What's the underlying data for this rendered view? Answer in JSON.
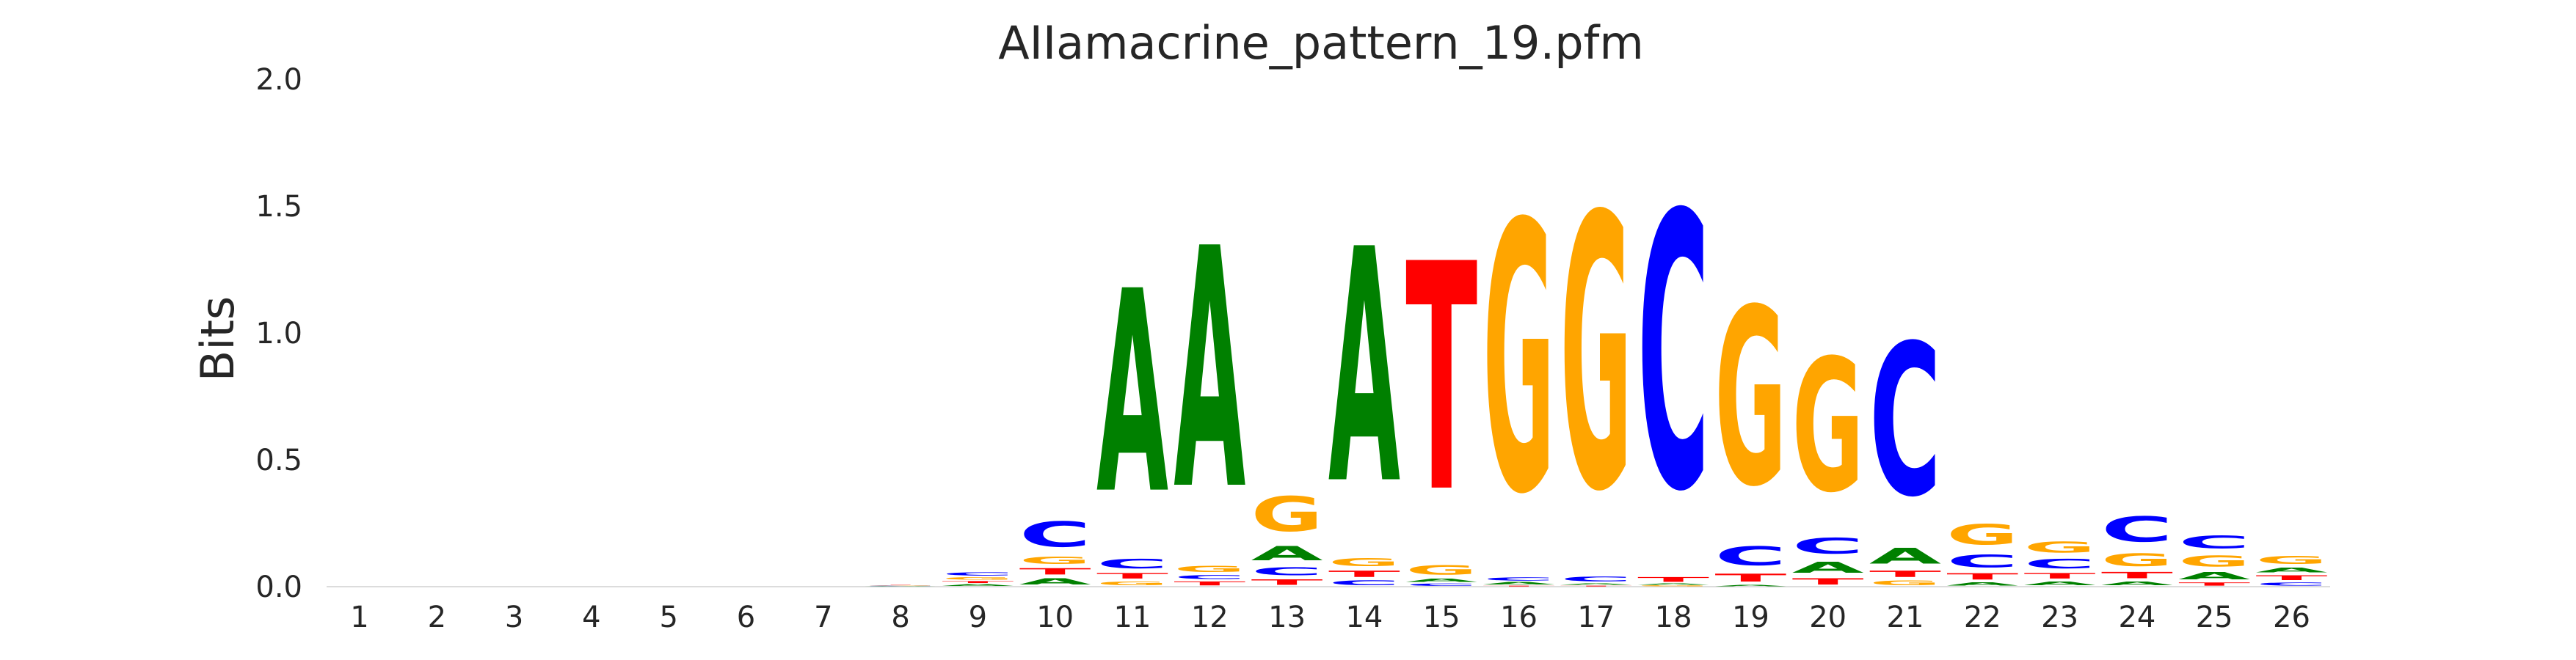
{
  "chart_data": {
    "type": "sequence_logo",
    "title": "AIIamacrine_pattern_19.pfm",
    "xlabel": "",
    "ylabel": "Bits",
    "ylim": [
      0,
      2.0
    ],
    "yticks": [
      "0.0",
      "0.5",
      "1.0",
      "1.5",
      "2.0"
    ],
    "positions": [
      "1",
      "2",
      "3",
      "4",
      "5",
      "6",
      "7",
      "8",
      "9",
      "10",
      "11",
      "12",
      "13",
      "14",
      "15",
      "16",
      "17",
      "18",
      "19",
      "20",
      "21",
      "22",
      "23",
      "24",
      "25",
      "26"
    ],
    "colors": {
      "A": "#008000",
      "C": "#0000ff",
      "G": "#ffa500",
      "T": "#ff0000"
    },
    "columns": [
      [],
      [],
      [],
      [],
      [],
      [],
      [],
      [
        [
          "A",
          0.002
        ],
        [
          "C",
          0.002
        ],
        [
          "G",
          0.002
        ],
        [
          "T",
          0.002
        ]
      ],
      [
        [
          "A",
          0.012
        ],
        [
          "T",
          0.012
        ],
        [
          "G",
          0.016
        ],
        [
          "C",
          0.02
        ]
      ],
      [
        [
          "A",
          0.04
        ],
        [
          "T",
          0.04
        ],
        [
          "G",
          0.045
        ],
        [
          "C",
          0.16
        ]
      ],
      [
        [
          "G",
          0.025
        ],
        [
          "T",
          0.035
        ],
        [
          "C",
          0.06
        ],
        [
          "A",
          1.28
        ]
      ],
      [
        [
          "T",
          0.025
        ],
        [
          "C",
          0.025
        ],
        [
          "G",
          0.04
        ],
        [
          "A",
          1.52
        ]
      ],
      [
        [
          "T",
          0.035
        ],
        [
          "C",
          0.05
        ],
        [
          "A",
          0.09
        ],
        [
          "G",
          0.22
        ]
      ],
      [
        [
          "C",
          0.03
        ],
        [
          "T",
          0.04
        ],
        [
          "G",
          0.05
        ],
        [
          "A",
          1.48
        ]
      ],
      [
        [
          "C",
          0.015
        ],
        [
          "A",
          0.02
        ],
        [
          "G",
          0.06
        ],
        [
          "T",
          1.44
        ]
      ],
      [
        [
          "T",
          0.005
        ],
        [
          "A",
          0.015
        ],
        [
          "C",
          0.02
        ],
        [
          "G",
          1.7
        ]
      ],
      [
        [
          "T",
          0.005
        ],
        [
          "A",
          0.01
        ],
        [
          "C",
          0.03
        ],
        [
          "G",
          1.73
        ]
      ],
      [
        [
          "G",
          0.005
        ],
        [
          "A",
          0.008
        ],
        [
          "T",
          0.03
        ],
        [
          "C",
          1.74
        ]
      ],
      [
        [
          "A",
          0.01
        ],
        [
          "T",
          0.05
        ],
        [
          "C",
          0.12
        ],
        [
          "G",
          1.12
        ]
      ],
      [
        [
          "T",
          0.04
        ],
        [
          "A",
          0.07
        ],
        [
          "C",
          0.1
        ],
        [
          "G",
          0.84
        ]
      ],
      [
        [
          "G",
          0.03
        ],
        [
          "T",
          0.04
        ],
        [
          "A",
          0.1
        ],
        [
          "C",
          0.96
        ]
      ],
      [
        [
          "A",
          0.02
        ],
        [
          "T",
          0.04
        ],
        [
          "C",
          0.08
        ],
        [
          "G",
          0.13
        ]
      ],
      [
        [
          "A",
          0.025
        ],
        [
          "T",
          0.035
        ],
        [
          "C",
          0.06
        ],
        [
          "G",
          0.07
        ]
      ],
      [
        [
          "A",
          0.025
        ],
        [
          "T",
          0.04
        ],
        [
          "G",
          0.08
        ],
        [
          "C",
          0.16
        ]
      ],
      [
        [
          "T",
          0.02
        ],
        [
          "A",
          0.045
        ],
        [
          "G",
          0.07
        ],
        [
          "C",
          0.08
        ]
      ],
      [
        [
          "C",
          0.02
        ],
        [
          "T",
          0.03
        ],
        [
          "A",
          0.03
        ],
        [
          "G",
          0.05
        ]
      ]
    ]
  }
}
